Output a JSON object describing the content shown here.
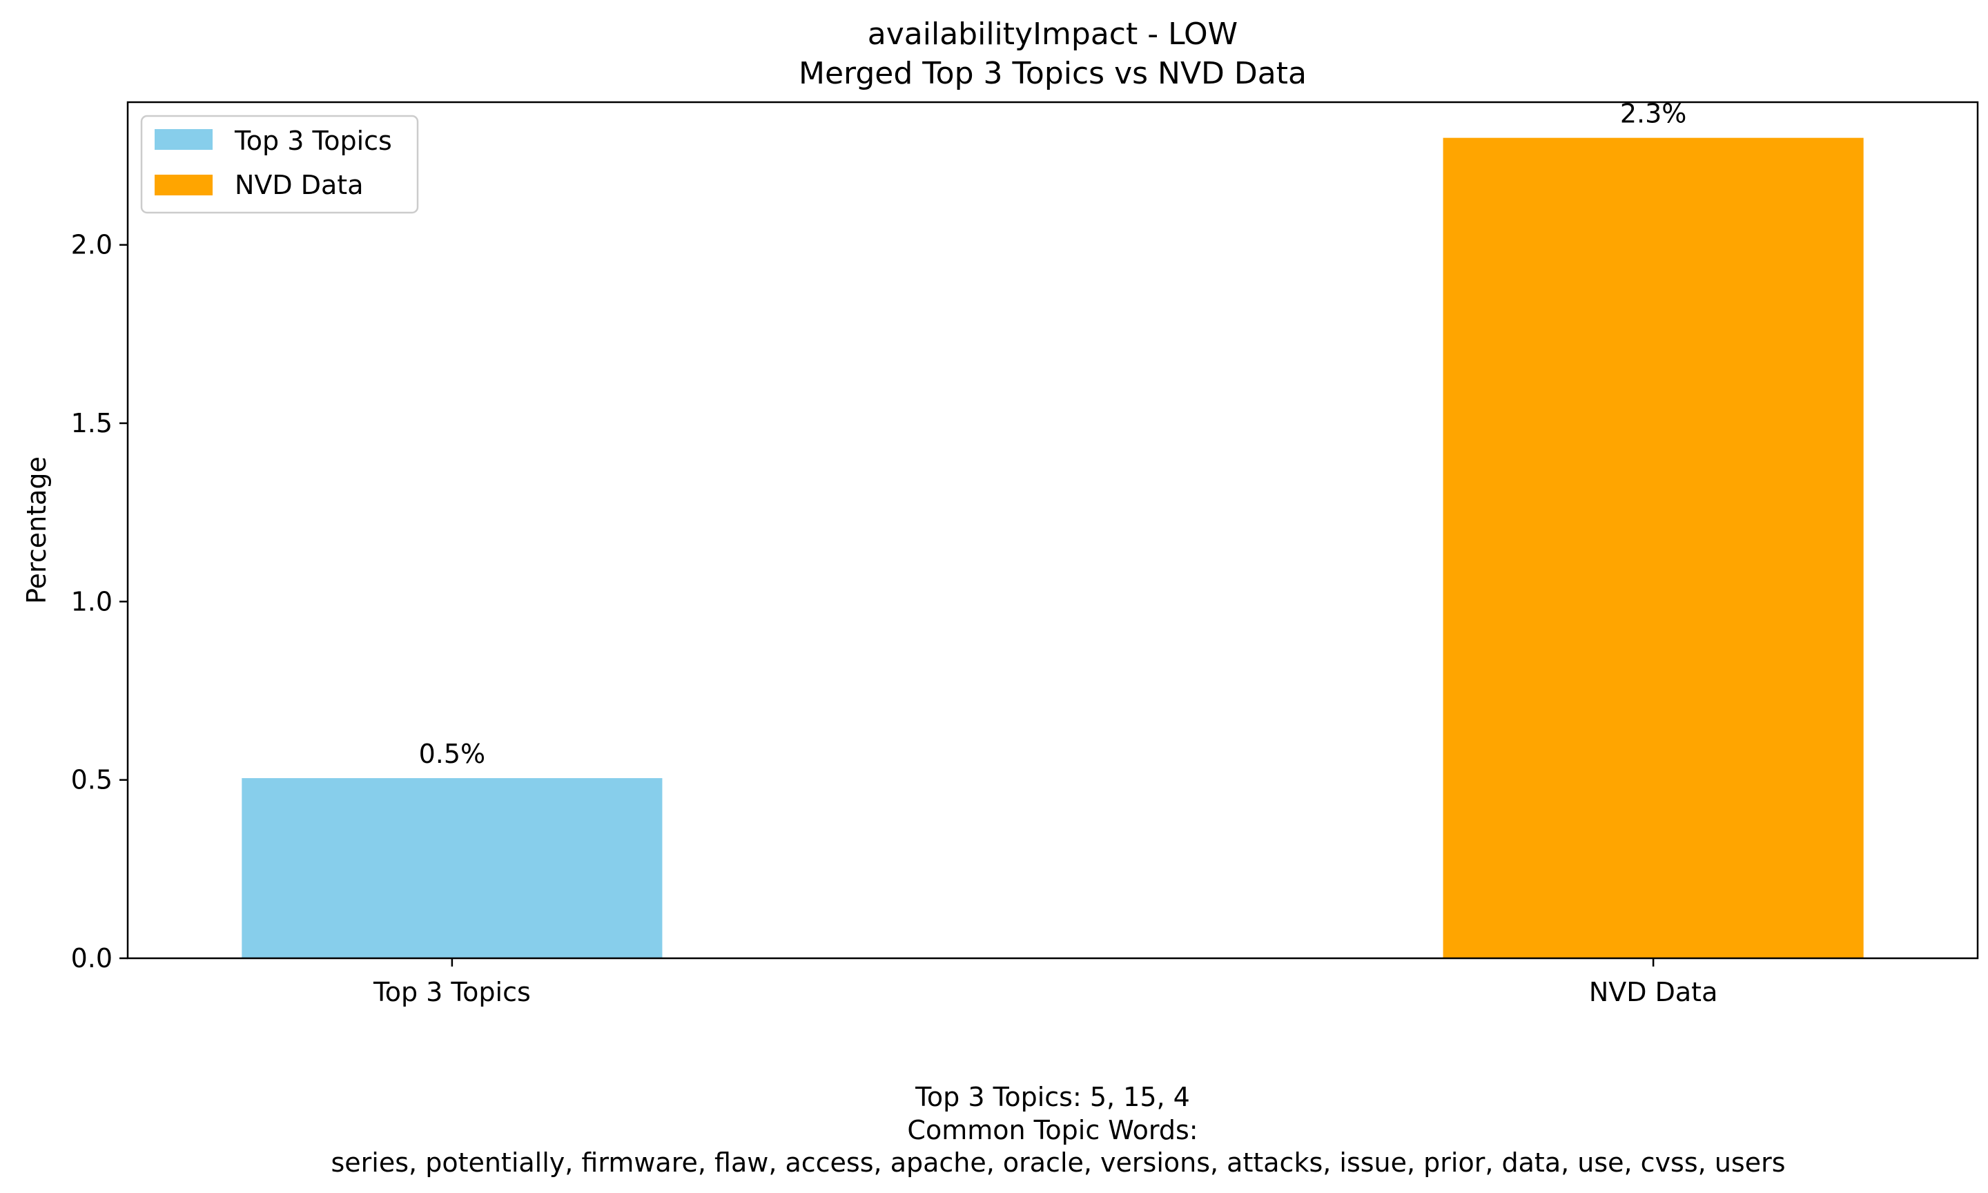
{
  "chart_data": {
    "type": "bar",
    "title": "availabilityImpact - LOW",
    "subtitle": "Merged Top 3 Topics vs NVD Data",
    "xlabel": "",
    "ylabel": "Percentage",
    "ylim": [
      0,
      2.4
    ],
    "yticks": [
      0.0,
      0.5,
      1.0,
      1.5,
      2.0
    ],
    "ytick_labels": [
      "0.0",
      "0.5",
      "1.0",
      "1.5",
      "2.0"
    ],
    "categories": [
      "Top 3 Topics",
      "NVD Data"
    ],
    "values": [
      0.505,
      2.3
    ],
    "bar_labels": [
      "0.5%",
      "2.3%"
    ],
    "colors": [
      "#87CEEB",
      "#FFA500"
    ],
    "legend": {
      "placement": "upper-left",
      "entries": [
        {
          "label": "Top 3 Topics",
          "color": "#87CEEB"
        },
        {
          "label": "NVD Data",
          "color": "#FFA500"
        }
      ]
    },
    "grid": false,
    "caption_lines": [
      "Top 3 Topics: 5, 15, 4",
      "Common Topic Words:",
      "series,  potentially,  firmware,  flaw,  access,  apache,  oracle,  versions,  attacks,  issue,  prior,  data,  use,  cvss,  users"
    ]
  }
}
